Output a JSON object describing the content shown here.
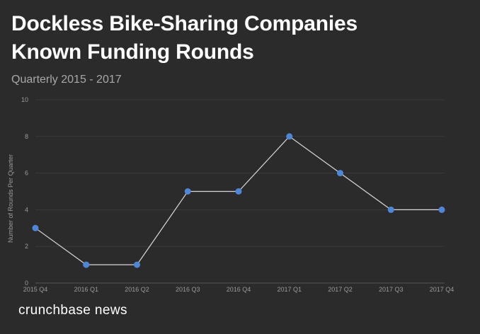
{
  "title_line1": "Dockless Bike-Sharing Companies",
  "title_line2": "Known Funding Rounds",
  "subtitle": "Quarterly 2015 - 2017",
  "brand": "crunchbase news",
  "chart_data": {
    "type": "line",
    "title": "Dockless Bike-Sharing Companies Known Funding Rounds",
    "subtitle": "Quarterly 2015 - 2017",
    "xlabel": "",
    "ylabel": "Number of Rounds Per Quarter",
    "categories": [
      "2015 Q4",
      "2016 Q1",
      "2016 Q2",
      "2016 Q3",
      "2016 Q4",
      "2017 Q1",
      "2017 Q2",
      "2017 Q3",
      "2017 Q4"
    ],
    "values": [
      3,
      1,
      1,
      5,
      5,
      8,
      6,
      4,
      4
    ],
    "ylim": [
      0,
      10
    ],
    "yticks": [
      "0",
      "2",
      "4",
      "6",
      "8",
      "10"
    ],
    "grid": true,
    "colors": {
      "line": "#d9d9d9",
      "marker": "#4f86d8",
      "grid": "#3a3a3a",
      "text": "#9a9a9a"
    }
  }
}
